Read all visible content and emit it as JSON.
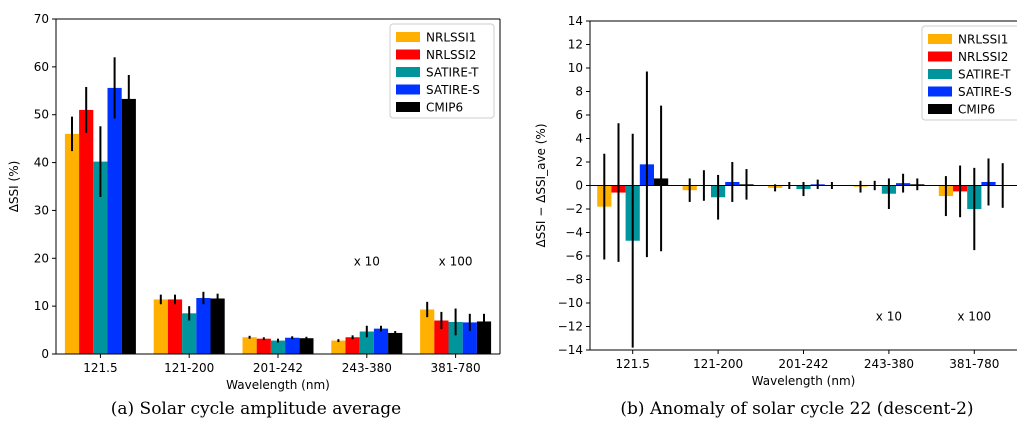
{
  "colors": {
    "NRLSSI1": "#FFB000",
    "NRLSSI2": "#FF0000",
    "SATIRE-T": "#00959C",
    "SATIRE-S": "#0033FF",
    "CMIP6": "#000000",
    "errorbar": "#000000"
  },
  "chart_data": [
    {
      "type": "bar",
      "caption": "(a) Solar cycle amplitude average",
      "xlabel": "Wavelength (nm)",
      "ylabel": "ΔSSI (%)",
      "ylim": [
        0,
        70
      ],
      "yticks": [
        0,
        10,
        20,
        30,
        40,
        50,
        60,
        70
      ],
      "categories": [
        "121.5",
        "121-200",
        "201-242",
        "243-380",
        "381-780"
      ],
      "legend_position": "top-right",
      "series": [
        {
          "name": "NRLSSI1",
          "values": [
            46,
            11.4,
            3.5,
            2.8,
            9.3
          ],
          "errors": [
            3.6,
            1.0,
            0.3,
            0.3,
            1.6
          ]
        },
        {
          "name": "NRLSSI2",
          "values": [
            51,
            11.4,
            3.2,
            3.5,
            7.0
          ],
          "errors": [
            4.8,
            1.0,
            0.3,
            0.4,
            1.8
          ]
        },
        {
          "name": "SATIRE-T",
          "values": [
            40.2,
            8.5,
            2.8,
            4.7,
            6.7
          ],
          "errors": [
            7.4,
            1.5,
            0.4,
            1.2,
            2.8
          ]
        },
        {
          "name": "SATIRE-S",
          "values": [
            55.6,
            11.7,
            3.4,
            5.3,
            6.6
          ],
          "errors": [
            6.4,
            1.3,
            0.3,
            0.6,
            1.8
          ]
        },
        {
          "name": "CMIP6",
          "values": [
            53.3,
            11.6,
            3.3,
            4.4,
            6.8
          ],
          "errors": [
            5.0,
            1.0,
            0.3,
            0.4,
            1.6
          ]
        }
      ],
      "annotations": [
        {
          "text": "x 10",
          "category": "243-380",
          "y": 18.5
        },
        {
          "text": "x 100",
          "category": "381-780",
          "y": 18.5
        }
      ]
    },
    {
      "type": "bar",
      "caption": "(b) Anomaly of solar cycle 22 (descent-2)",
      "xlabel": "Wavelength (nm)",
      "ylabel": "ΔSSI − ΔSSI_ave (%)",
      "ylim": [
        -14,
        14
      ],
      "yticks": [
        -14,
        -12,
        -10,
        -8,
        -6,
        -4,
        -2,
        0,
        2,
        4,
        6,
        8,
        10,
        12,
        14
      ],
      "categories": [
        "121.5",
        "121-200",
        "201-242",
        "243-380",
        "381-780"
      ],
      "legend_position": "top-right",
      "series": [
        {
          "name": "NRLSSI1",
          "values": [
            -1.8,
            -0.4,
            -0.2,
            -0.1,
            -0.9
          ],
          "errors": [
            4.5,
            1.0,
            0.3,
            0.5,
            1.7
          ]
        },
        {
          "name": "NRLSSI2",
          "values": [
            -0.6,
            0.0,
            0.0,
            0.0,
            -0.5
          ],
          "errors": [
            5.9,
            1.3,
            0.3,
            0.4,
            2.2
          ]
        },
        {
          "name": "SATIRE-T",
          "values": [
            -4.7,
            -1.0,
            -0.3,
            -0.7,
            -2.0
          ],
          "errors": [
            9.1,
            1.9,
            0.6,
            1.3,
            3.5
          ]
        },
        {
          "name": "SATIRE-S",
          "values": [
            1.8,
            0.3,
            0.1,
            0.2,
            0.3
          ],
          "errors": [
            7.9,
            1.7,
            0.4,
            0.8,
            2.0
          ]
        },
        {
          "name": "CMIP6",
          "values": [
            0.6,
            0.1,
            0.0,
            0.1,
            0.0
          ],
          "errors": [
            6.2,
            1.3,
            0.3,
            0.5,
            1.9
          ]
        }
      ],
      "annotations": [
        {
          "text": "x 10",
          "category": "243-380",
          "y": -11.5
        },
        {
          "text": "x 100",
          "category": "381-780",
          "y": -11.5
        }
      ]
    }
  ]
}
